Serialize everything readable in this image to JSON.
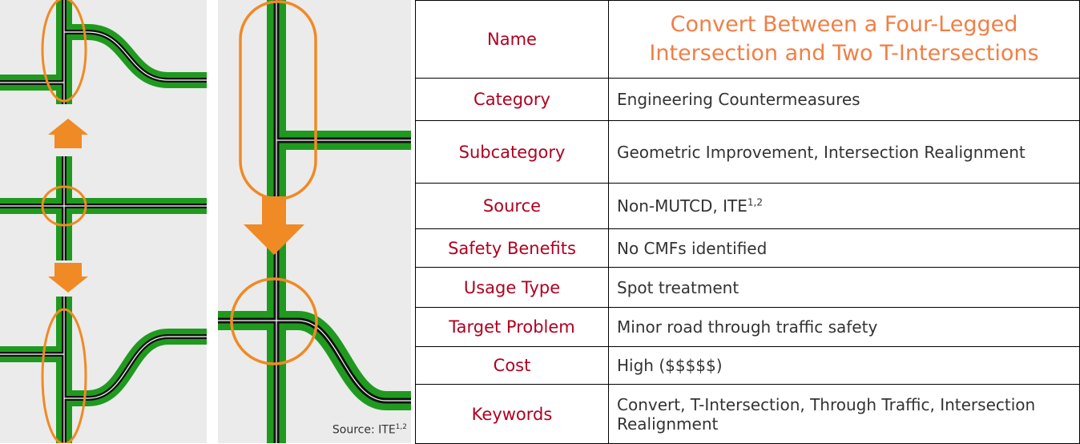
{
  "figure": {
    "caption": {
      "text": "Source: ITE",
      "sup": "1,2"
    }
  },
  "table": {
    "rows": [
      {
        "label": "Name",
        "value": "Convert Between a Four-Legged Intersection and Two T-Intersections"
      },
      {
        "label": "Category",
        "value": "Engineering Countermeasures"
      },
      {
        "label": "Subcategory",
        "value": "Geometric Improvement, Intersection Realignment"
      },
      {
        "label": "Source",
        "value": "Non-MUTCD, ITE",
        "sup": "1,2"
      },
      {
        "label": "Safety Benefits",
        "value": "No CMFs identified"
      },
      {
        "label": "Usage Type",
        "value": "Spot treatment"
      },
      {
        "label": "Target Problem",
        "value": "Minor road through traffic safety"
      },
      {
        "label": "Cost",
        "value": "High ($$$$$)"
      },
      {
        "label": "Keywords",
        "value": "Convert, T-Intersection, Through Traffic, Intersection Realignment"
      }
    ]
  }
}
